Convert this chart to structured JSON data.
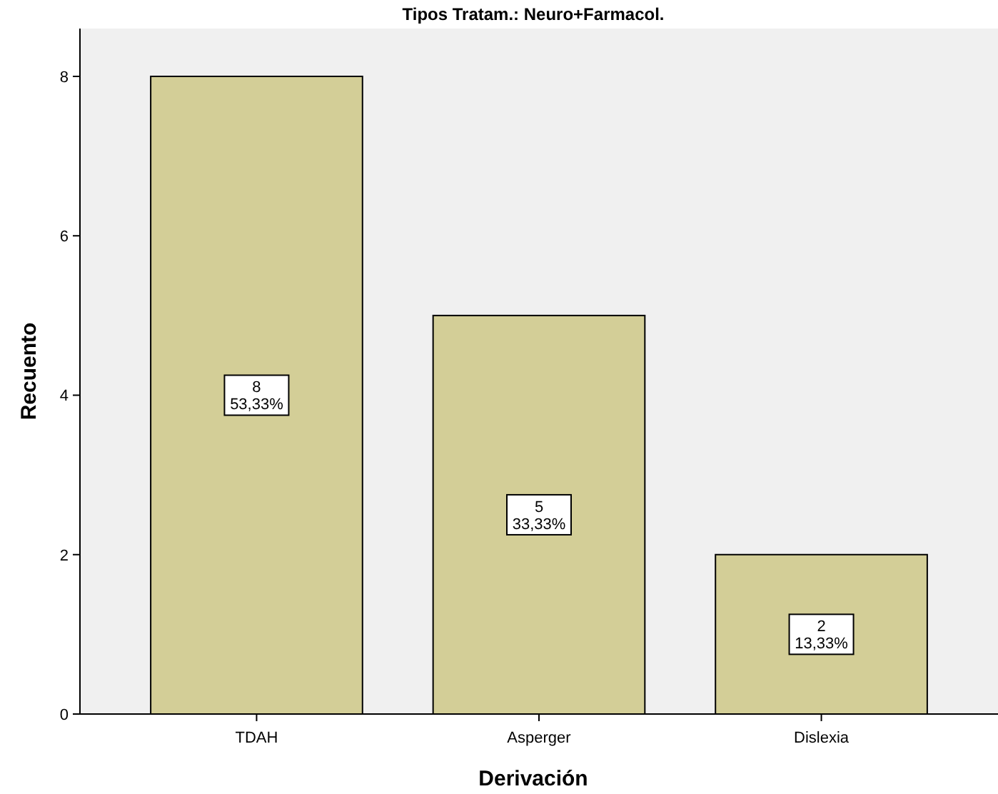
{
  "chart_data": {
    "type": "bar",
    "title": "Tipos Tratam.: Neuro+Farmacol.",
    "xlabel": "Derivación",
    "ylabel": "Recuento",
    "categories": [
      "TDAH",
      "Asperger",
      "Dislexia"
    ],
    "values": [
      8,
      5,
      2
    ],
    "value_labels": [
      "8\n53,33%",
      "5\n33,33%",
      "2\n13,33%"
    ],
    "color": "#d3ce97",
    "ylim": [
      0,
      8.6
    ],
    "yticks": [
      0,
      2,
      4,
      6,
      8
    ],
    "grid": false
  }
}
